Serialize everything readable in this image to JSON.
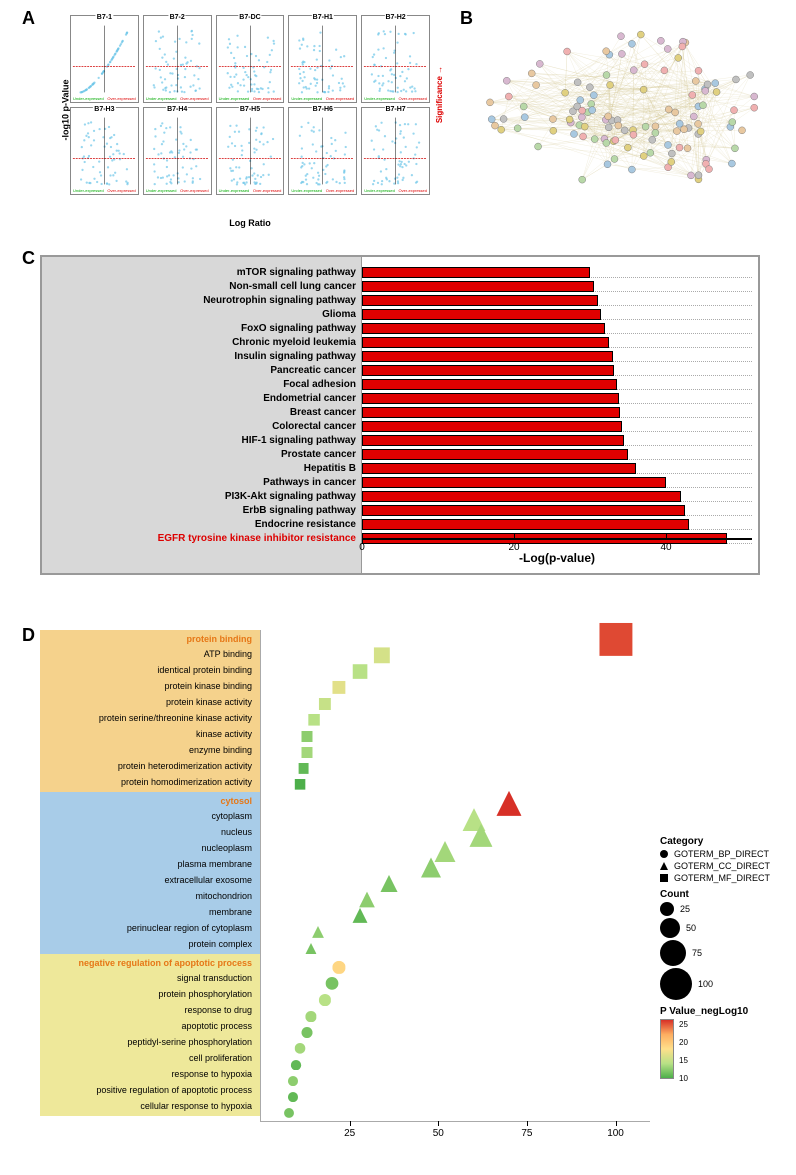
{
  "panels": {
    "A": {
      "label": "A",
      "volcano_titles": [
        "B7-1",
        "B7-2",
        "B7-DC",
        "B7-H1",
        "B7-H2",
        "B7-H3",
        "B7-H4",
        "B7-H5",
        "B7-H6",
        "B7-H7"
      ],
      "ylab": "-log10 p-Value",
      "xlab": "Log Ratio",
      "significance_label": "Significance",
      "under_label": "Under-expressed",
      "over_label": "Over-expressed",
      "point_color": "#6ec6e8",
      "threshold_color": "#d00000",
      "border_color": "#888888",
      "xlim": [
        -2,
        2
      ],
      "ylim": [
        0,
        3.5
      ]
    },
    "B": {
      "label": "B",
      "node_fill_colors": [
        "#e8c8a0",
        "#b8d8a8",
        "#a8c8e0",
        "#d8b8d0",
        "#e0d080",
        "#c0c0c0",
        "#f0b0b0"
      ],
      "edge_color": "#c8b878",
      "n_nodes_approx": 120
    },
    "C": {
      "label": "C",
      "xlab": "-Log(p-value)",
      "xlim": [
        0,
        50
      ],
      "xticks": [
        0,
        20,
        40
      ],
      "bar_color": "#e00000",
      "bar_border": "#000000",
      "background_left": "#d8d8d8",
      "label_fontsize": 10,
      "highlight_color": "#d00000",
      "bars": [
        {
          "label": "mTOR signaling pathway",
          "value": 30,
          "highlight": false
        },
        {
          "label": "Non-small cell lung cancer",
          "value": 30.5,
          "highlight": false
        },
        {
          "label": "Neurotrophin signaling pathway",
          "value": 31,
          "highlight": false
        },
        {
          "label": "Glioma",
          "value": 31.5,
          "highlight": false
        },
        {
          "label": "FoxO signaling pathway",
          "value": 32,
          "highlight": false
        },
        {
          "label": "Chronic myeloid leukemia",
          "value": 32.5,
          "highlight": false
        },
        {
          "label": "Insulin signaling pathway",
          "value": 33,
          "highlight": false
        },
        {
          "label": "Pancreatic cancer",
          "value": 33.2,
          "highlight": false
        },
        {
          "label": "Focal adhesion",
          "value": 33.5,
          "highlight": false
        },
        {
          "label": "Endometrial cancer",
          "value": 33.8,
          "highlight": false
        },
        {
          "label": "Breast cancer",
          "value": 34,
          "highlight": false
        },
        {
          "label": "Colorectal cancer",
          "value": 34.2,
          "highlight": false
        },
        {
          "label": "HIF-1 signaling pathway",
          "value": 34.5,
          "highlight": false
        },
        {
          "label": "Prostate cancer",
          "value": 35,
          "highlight": false
        },
        {
          "label": "Hepatitis B",
          "value": 36,
          "highlight": false
        },
        {
          "label": "Pathways in cancer",
          "value": 40,
          "highlight": false
        },
        {
          "label": "PI3K-Akt signaling pathway",
          "value": 42,
          "highlight": false
        },
        {
          "label": "ErbB signaling pathway",
          "value": 42.5,
          "highlight": false
        },
        {
          "label": "Endocrine resistance",
          "value": 43,
          "highlight": false
        },
        {
          "label": "EGFR tyrosine kinase inhibitor resistance",
          "value": 48,
          "highlight": true
        }
      ]
    },
    "D": {
      "label": "D",
      "xlim": [
        0,
        110
      ],
      "xticks": [
        25,
        50,
        75,
        100
      ],
      "sections": [
        {
          "class": "mf",
          "title": "protein binding",
          "title_highlight": true,
          "category": "GOTERM_MF_DIRECT",
          "shape": "square",
          "terms": [
            {
              "label": "protein binding",
              "x": 100,
              "count": 105,
              "p": 26,
              "is_title": true
            },
            {
              "label": "ATP binding",
              "x": 34,
              "count": 35,
              "p": 14
            },
            {
              "label": "identical protein binding",
              "x": 28,
              "count": 28,
              "p": 12
            },
            {
              "label": "protein kinase binding",
              "x": 22,
              "count": 22,
              "p": 15
            },
            {
              "label": "protein kinase activity",
              "x": 18,
              "count": 18,
              "p": 13
            },
            {
              "label": "protein serine/threonine kinase activity",
              "x": 15,
              "count": 15,
              "p": 12
            },
            {
              "label": "kinase activity",
              "x": 13,
              "count": 13,
              "p": 10
            },
            {
              "label": "enzyme binding",
              "x": 13,
              "count": 13,
              "p": 11
            },
            {
              "label": "protein heterodimerization activity",
              "x": 12,
              "count": 12,
              "p": 8
            },
            {
              "label": "protein homodimerization activity",
              "x": 11,
              "count": 11,
              "p": 7
            }
          ]
        },
        {
          "class": "cc",
          "title": "cytosol",
          "title_highlight": true,
          "category": "GOTERM_CC_DIRECT",
          "shape": "triangle",
          "terms": [
            {
              "label": "cytosol",
              "x": 70,
              "count": 72,
              "p": 27,
              "is_title": true
            },
            {
              "label": "cytoplasm",
              "x": 60,
              "count": 62,
              "p": 12
            },
            {
              "label": "nucleus",
              "x": 62,
              "count": 64,
              "p": 11
            },
            {
              "label": "nucleoplasm",
              "x": 52,
              "count": 54,
              "p": 11
            },
            {
              "label": "plasma membrane",
              "x": 48,
              "count": 50,
              "p": 10
            },
            {
              "label": "extracellular exosome",
              "x": 36,
              "count": 38,
              "p": 9
            },
            {
              "label": "mitochondrion",
              "x": 30,
              "count": 32,
              "p": 10
            },
            {
              "label": "membrane",
              "x": 28,
              "count": 30,
              "p": 8
            },
            {
              "label": "perinuclear region of cytoplasm",
              "x": 16,
              "count": 16,
              "p": 10
            },
            {
              "label": "protein complex",
              "x": 14,
              "count": 14,
              "p": 9
            }
          ]
        },
        {
          "class": "bp",
          "title": "negative regulation of apoptotic process",
          "title_highlight": true,
          "category": "GOTERM_BP_DIRECT",
          "shape": "circle",
          "terms": [
            {
              "label": "negative regulation of apoptotic process",
              "x": 22,
              "count": 22,
              "p": 18,
              "is_title": true
            },
            {
              "label": "signal transduction",
              "x": 20,
              "count": 20,
              "p": 9
            },
            {
              "label": "protein phosphorylation",
              "x": 18,
              "count": 18,
              "p": 12
            },
            {
              "label": "response to drug",
              "x": 14,
              "count": 14,
              "p": 11
            },
            {
              "label": "apoptotic process",
              "x": 13,
              "count": 13,
              "p": 9
            },
            {
              "label": "peptidyl-serine phosphorylation",
              "x": 11,
              "count": 11,
              "p": 11
            },
            {
              "label": "cell proliferation",
              "x": 10,
              "count": 10,
              "p": 8
            },
            {
              "label": "response to hypoxia",
              "x": 9,
              "count": 9,
              "p": 10
            },
            {
              "label": "positive regulation of apoptotic process",
              "x": 9,
              "count": 9,
              "p": 8
            },
            {
              "label": "cellular response to hypoxia",
              "x": 8,
              "count": 8,
              "p": 9
            }
          ]
        }
      ],
      "legend": {
        "category_title": "Category",
        "categories": [
          {
            "label": "GOTERM_BP_DIRECT",
            "shape": "circle"
          },
          {
            "label": "GOTERM_CC_DIRECT",
            "shape": "triangle"
          },
          {
            "label": "GOTERM_MF_DIRECT",
            "shape": "square"
          }
        ],
        "count_title": "Count",
        "counts": [
          25,
          50,
          75,
          100
        ],
        "pvalue_title": "P Value_negLog10",
        "pvalue_ticks": [
          25,
          20,
          15,
          10
        ],
        "color_low": "#4daf4a",
        "color_high": "#d73027"
      }
    }
  }
}
